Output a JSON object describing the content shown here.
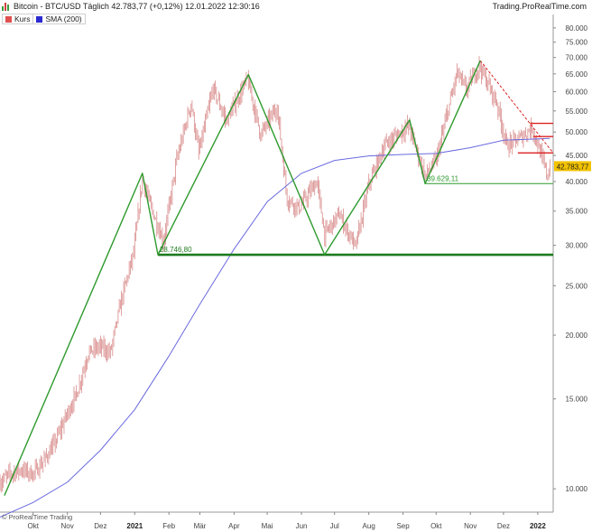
{
  "header": {
    "title": "Bitcoin - BTC/USD Täglich 42.783,77 (+0,12%) 12.01.2022 12:30:16",
    "source": "Trading.ProRealTime.com"
  },
  "legend": [
    {
      "label": "Kurs",
      "color": "#e05050"
    },
    {
      "label": "SMA (200)",
      "color": "#2a2ad0"
    }
  ],
  "footer": {
    "credit": "© ProRealTime Trading"
  },
  "colors": {
    "candle": "#d98b8b",
    "sma": "#6a6ae0",
    "trend": "#2e9a2e",
    "support": "#1e7a1e",
    "resistance": "#dd2222",
    "price_tag_bg": "#f2c200"
  },
  "chart_data": {
    "type": "line",
    "y_scale": "log",
    "ylim": [
      9000,
      85000
    ],
    "x_range": [
      "2020-09-01",
      "2022-01-15"
    ],
    "y_ticks": [
      10000,
      15000,
      20000,
      25000,
      30000,
      35000,
      40000,
      45000,
      50000,
      55000,
      60000,
      65000,
      70000,
      75000,
      80000
    ],
    "y_tick_labels": [
      "10.000",
      "15.000",
      "20.000",
      "25.000",
      "30.000",
      "35.000",
      "40.000",
      "45.000",
      "50.000",
      "55.000",
      "60.000",
      "65.000",
      "70.000",
      "75.000",
      "80.000"
    ],
    "x_ticks": [
      {
        "date": "2020-10-01",
        "label": "Okt",
        "bold": false
      },
      {
        "date": "2020-11-01",
        "label": "Nov",
        "bold": false
      },
      {
        "date": "2020-12-01",
        "label": "Dez",
        "bold": false
      },
      {
        "date": "2021-01-01",
        "label": "2021",
        "bold": true
      },
      {
        "date": "2021-02-01",
        "label": "Feb",
        "bold": false
      },
      {
        "date": "2021-03-01",
        "label": "Mär",
        "bold": false
      },
      {
        "date": "2021-04-01",
        "label": "Apr",
        "bold": false
      },
      {
        "date": "2021-05-01",
        "label": "Mai",
        "bold": false
      },
      {
        "date": "2021-06-01",
        "label": "Jun",
        "bold": false
      },
      {
        "date": "2021-07-01",
        "label": "Jul",
        "bold": false
      },
      {
        "date": "2021-08-01",
        "label": "Aug",
        "bold": false
      },
      {
        "date": "2021-09-01",
        "label": "Sep",
        "bold": false
      },
      {
        "date": "2021-10-01",
        "label": "Okt",
        "bold": false
      },
      {
        "date": "2021-11-01",
        "label": "Nov",
        "bold": false
      },
      {
        "date": "2021-12-01",
        "label": "Dez",
        "bold": false
      },
      {
        "date": "2022-01-01",
        "label": "2022",
        "bold": true
      }
    ],
    "series": [
      {
        "name": "Kurs",
        "style": "candles",
        "points": [
          [
            "2020-09-01",
            10300
          ],
          [
            "2020-09-10",
            10700
          ],
          [
            "2020-09-20",
            10900
          ],
          [
            "2020-10-01",
            10700
          ],
          [
            "2020-10-10",
            11300
          ],
          [
            "2020-10-20",
            12200
          ],
          [
            "2020-10-31",
            13900
          ],
          [
            "2020-11-10",
            15500
          ],
          [
            "2020-11-20",
            18500
          ],
          [
            "2020-11-30",
            19000
          ],
          [
            "2020-12-10",
            18500
          ],
          [
            "2020-12-20",
            23500
          ],
          [
            "2020-12-31",
            29000
          ],
          [
            "2021-01-08",
            40500
          ],
          [
            "2021-01-15",
            36000
          ],
          [
            "2021-01-27",
            30500
          ],
          [
            "2021-02-08",
            44000
          ],
          [
            "2021-02-21",
            57000
          ],
          [
            "2021-02-28",
            45500
          ],
          [
            "2021-03-13",
            61000
          ],
          [
            "2021-03-25",
            52500
          ],
          [
            "2021-04-13",
            63500
          ],
          [
            "2021-04-25",
            49500
          ],
          [
            "2021-05-10",
            56000
          ],
          [
            "2021-05-19",
            37000
          ],
          [
            "2021-05-30",
            35500
          ],
          [
            "2021-06-15",
            40000
          ],
          [
            "2021-06-22",
            31500
          ],
          [
            "2021-07-05",
            34500
          ],
          [
            "2021-07-20",
            29800
          ],
          [
            "2021-08-01",
            39500
          ],
          [
            "2021-08-15",
            47000
          ],
          [
            "2021-09-06",
            51500
          ],
          [
            "2021-09-21",
            41000
          ],
          [
            "2021-10-01",
            44000
          ],
          [
            "2021-10-20",
            65500
          ],
          [
            "2021-10-28",
            60500
          ],
          [
            "2021-11-09",
            67500
          ],
          [
            "2021-11-25",
            57000
          ],
          [
            "2021-12-04",
            47000
          ],
          [
            "2021-12-15",
            48500
          ],
          [
            "2021-12-27",
            51000
          ],
          [
            "2022-01-10",
            41000
          ],
          [
            "2022-01-12",
            42783.77
          ]
        ]
      },
      {
        "name": "SMA (200)",
        "style": "line",
        "points": [
          [
            "2020-09-01",
            8800
          ],
          [
            "2020-10-01",
            9400
          ],
          [
            "2020-11-01",
            10300
          ],
          [
            "2020-12-01",
            11900
          ],
          [
            "2021-01-01",
            14300
          ],
          [
            "2021-02-01",
            18200
          ],
          [
            "2021-03-01",
            23000
          ],
          [
            "2021-04-01",
            29500
          ],
          [
            "2021-05-01",
            36500
          ],
          [
            "2021-06-01",
            41500
          ],
          [
            "2021-07-01",
            44000
          ],
          [
            "2021-08-01",
            44900
          ],
          [
            "2021-09-01",
            45200
          ],
          [
            "2021-10-01",
            45400
          ],
          [
            "2021-11-01",
            46600
          ],
          [
            "2021-12-01",
            48200
          ],
          [
            "2022-01-12",
            48600
          ]
        ]
      },
      {
        "name": "Zickzack",
        "style": "trend-line",
        "points": [
          [
            "2020-09-05",
            9700
          ],
          [
            "2021-01-08",
            41500
          ],
          [
            "2021-01-22",
            28746.8
          ],
          [
            "2021-04-14",
            64800
          ],
          [
            "2021-06-22",
            28746.8
          ],
          [
            "2021-09-07",
            52800
          ],
          [
            "2021-09-21",
            39629.11
          ],
          [
            "2021-11-10",
            69000
          ]
        ]
      }
    ],
    "annotations": [
      {
        "type": "hline",
        "y": 28746.8,
        "from": "2021-01-22",
        "to": "2022-01-15",
        "label": "28.746,80",
        "color": "#1e7a1e",
        "weight": "thick"
      },
      {
        "type": "hline",
        "y": 39629.11,
        "from": "2021-09-21",
        "to": "2022-01-15",
        "label": "39.629,11",
        "color": "#2e9a2e",
        "weight": "thin"
      },
      {
        "type": "segment",
        "from": [
          "2021-11-10",
          69000
        ],
        "to": [
          "2022-01-15",
          45500
        ],
        "color": "#dd2222",
        "dashed": true
      },
      {
        "type": "hline",
        "y": 52000,
        "from": "2021-12-25",
        "to": "2022-01-15",
        "color": "#dd2222"
      },
      {
        "type": "hline",
        "y": 49000,
        "from": "2021-12-28",
        "to": "2022-01-15",
        "color": "#dd2222"
      },
      {
        "type": "hline",
        "y": 45500,
        "from": "2021-12-14",
        "to": "2022-01-15",
        "color": "#dd2222"
      }
    ],
    "last_price_label": "42.783,77",
    "last_price": 42783.77
  }
}
